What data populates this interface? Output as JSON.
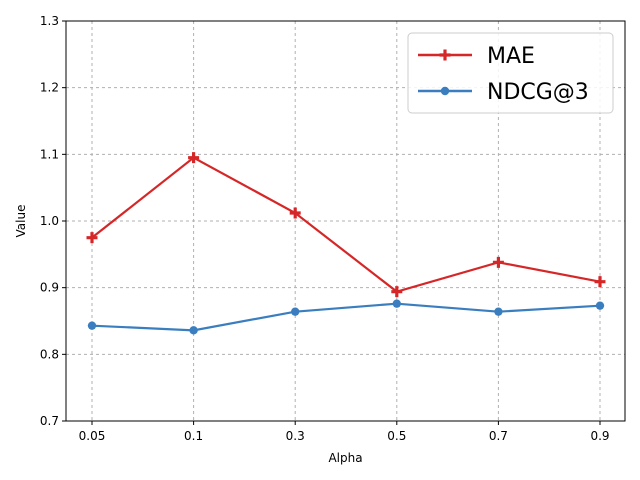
{
  "chart_data": {
    "type": "line",
    "categories": [
      "0.05",
      "0.1",
      "0.3",
      "0.5",
      "0.7",
      "0.9"
    ],
    "series": [
      {
        "name": "MAE",
        "values": [
          0.975,
          1.095,
          1.012,
          0.894,
          0.938,
          0.909
        ],
        "color": "#d62728",
        "marker": "plus"
      },
      {
        "name": "NDCG@3",
        "values": [
          0.843,
          0.836,
          0.864,
          0.876,
          0.864,
          0.873
        ],
        "color": "#3a7ebf",
        "marker": "circle"
      }
    ],
    "xlabel": "Alpha",
    "ylabel": "Value",
    "ylim": [
      0.7,
      1.3
    ],
    "yticks": [
      "0.7",
      "0.8",
      "0.9",
      "1.0",
      "1.1",
      "1.2",
      "1.3"
    ],
    "grid": true,
    "legend_position": "top-right"
  }
}
